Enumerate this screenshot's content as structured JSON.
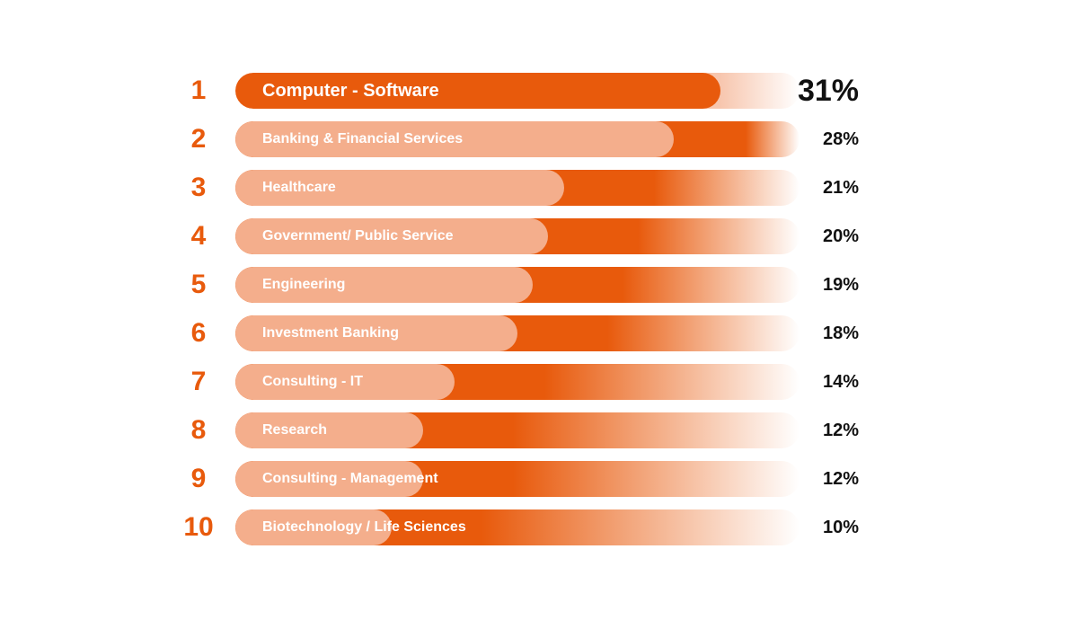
{
  "chart_data": {
    "type": "bar",
    "orientation": "horizontal",
    "ranks": [
      "1",
      "2",
      "3",
      "4",
      "5",
      "6",
      "7",
      "8",
      "9",
      "10"
    ],
    "categories": [
      "Computer - Software",
      "Banking & Financial Services",
      "Healthcare",
      "Government/ Public Service",
      "Engineering",
      "Investment Banking",
      "Consulting - IT",
      "Research",
      "Consulting - Management",
      "Biotechnology / Life Sciences"
    ],
    "values": [
      31,
      28,
      21,
      20,
      19,
      18,
      14,
      12,
      12,
      10
    ],
    "value_labels": [
      "31%",
      "28%",
      "21%",
      "20%",
      "19%",
      "18%",
      "14%",
      "12%",
      "12%",
      "10%"
    ],
    "title": "",
    "xlabel": "",
    "ylabel": "",
    "grid": false,
    "legend": "none"
  },
  "colors": {
    "accent": "#e85a0c",
    "bar_fill_light": "#f4ae8c",
    "bar_fill_top": "#e85a0c",
    "text_dark": "#111111",
    "label_text": "#ffffff"
  }
}
